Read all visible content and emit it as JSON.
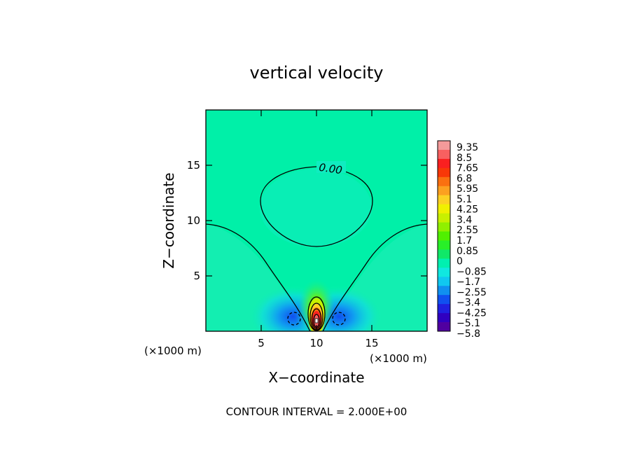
{
  "chart_data": {
    "type": "heatmap",
    "title": "vertical velocity",
    "xlabel": "X−coordinate",
    "ylabel": "Z−coordinate",
    "x_unit_left": "(×1000 m)",
    "x_unit_right": "(×1000 m)",
    "xlim": [
      0,
      20
    ],
    "ylim": [
      0,
      20
    ],
    "xticks": [
      5,
      10,
      15
    ],
    "yticks": [
      5,
      10,
      15
    ],
    "contour_label": "0.00",
    "contour_interval_text": "CONTOUR INTERVAL = 2.000E+00",
    "colorbar": {
      "labels": [
        "9.35",
        "8.5",
        "7.65",
        "6.8",
        "5.95",
        "5.1",
        "4.25",
        "3.4",
        "2.55",
        "1.7",
        "0.85",
        "0",
        "−0.85",
        "−1.7",
        "−2.55",
        "−3.4",
        "−4.25",
        "−5.1",
        "−5.8"
      ],
      "colors": [
        "#f49a9a",
        "#f86060",
        "#fa2020",
        "#f83808",
        "#fa7010",
        "#fca020",
        "#fcd024",
        "#f0f000",
        "#c8f000",
        "#90f000",
        "#50f000",
        "#28f028",
        "#10e868",
        "#00f0b0",
        "#10e8e0",
        "#10c8f0",
        "#1090f0",
        "#1050f0",
        "#2020e0",
        "#3000c0",
        "#5000a0"
      ]
    },
    "field": {
      "background": 0.28,
      "updraft": {
        "x": 10,
        "z": 1.0,
        "amplitude": 9.35
      },
      "downdrafts": [
        {
          "x": 8.0,
          "z": 1.3,
          "amplitude": -3.4
        },
        {
          "x": 12.0,
          "z": 1.3,
          "amplitude": -3.4
        }
      ]
    }
  }
}
